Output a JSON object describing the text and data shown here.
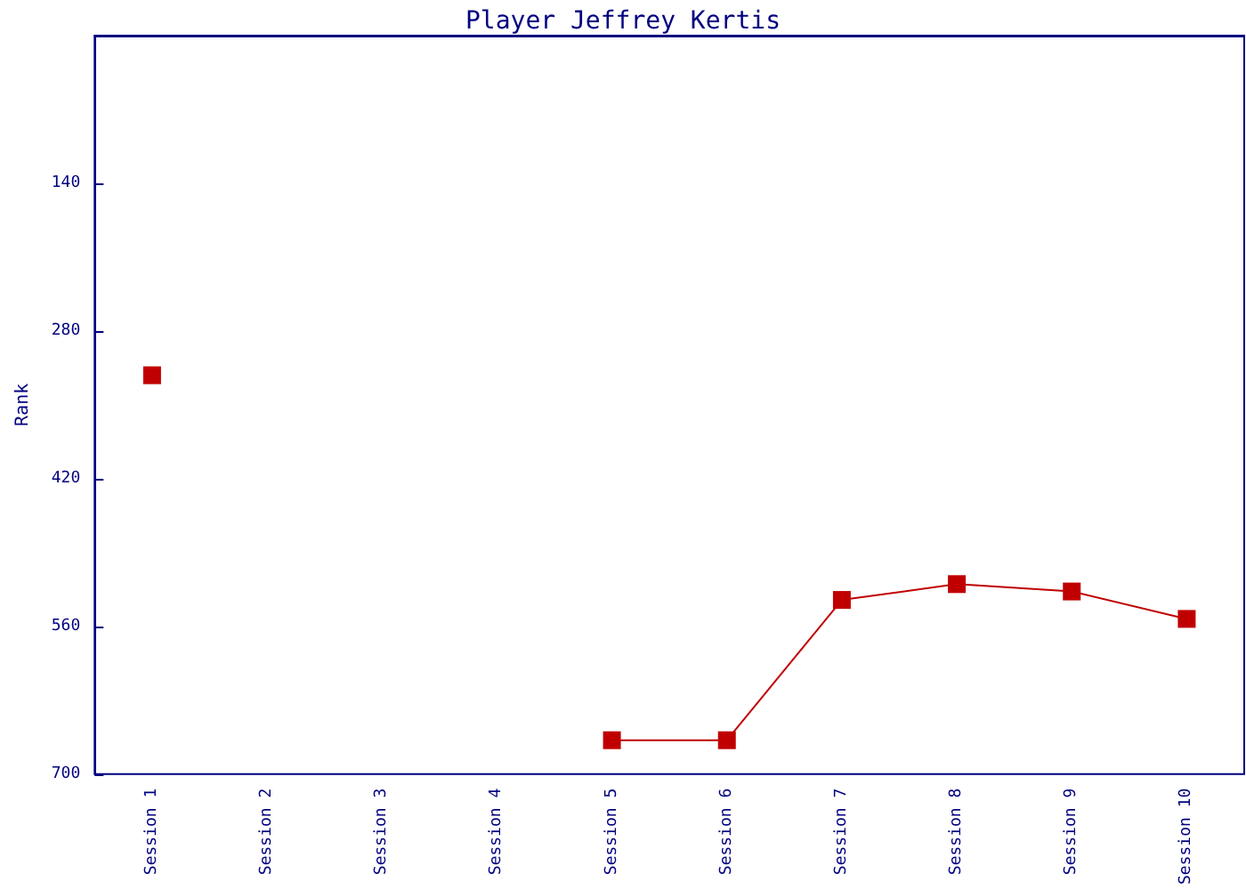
{
  "chart_data": {
    "type": "line",
    "title": "Player Jeffrey Kertis",
    "ylabel": "Rank",
    "categories": [
      "Session 1",
      "Session 2",
      "Session 3",
      "Session 4",
      "Session 5",
      "Session 6",
      "Session 7",
      "Session 8",
      "Session 9",
      "Session 10"
    ],
    "series": [
      {
        "color": "#c00000",
        "values": [
          322,
          null,
          null,
          null,
          668,
          668,
          535,
          520,
          527,
          553
        ]
      }
    ],
    "ylim": [
      700,
      0
    ],
    "yticks": [
      140,
      280,
      420,
      560,
      700
    ],
    "grid": false,
    "marker": "square",
    "line_style": "solid"
  }
}
